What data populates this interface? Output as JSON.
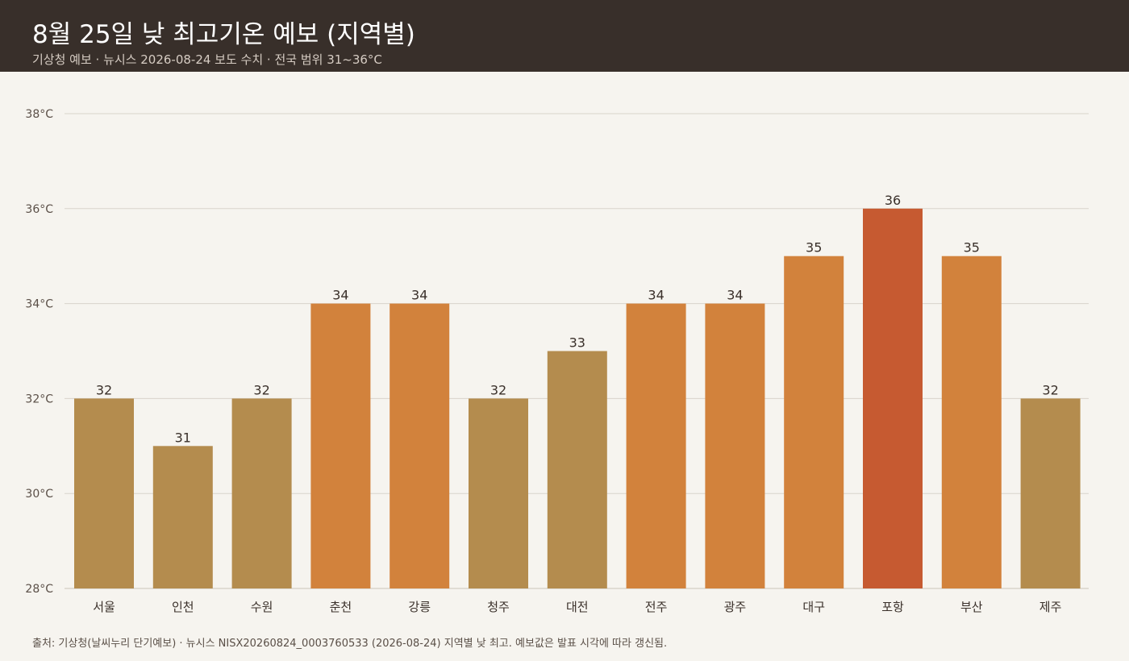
{
  "header": {
    "title": "8월 25일 낮 최고기온 예보 (지역별)",
    "subtitle": "기상청 예보 · 뉴시스 2026-08-24 보도 수치  ·  전국 범위 31~36°C"
  },
  "footer": {
    "source": "출처: 기상청(날씨누리 단기예보) · 뉴시스 NISX20260824_0003760533 (2026-08-24) 지역별 낮 최고. 예보값은 발표 시각에 따라 갱신됨."
  },
  "colors": {
    "low": "#b48c4e",
    "mid": "#d2823c",
    "high": "#c65a31",
    "grid": "#d8d3cb",
    "background": "#f6f4ef",
    "header_bg": "#382f2a"
  },
  "chart_data": {
    "type": "bar",
    "categories": [
      "서울",
      "인천",
      "수원",
      "춘천",
      "강릉",
      "청주",
      "대전",
      "전주",
      "광주",
      "대구",
      "포항",
      "부산",
      "제주"
    ],
    "values": [
      32,
      31,
      32,
      34,
      34,
      32,
      33,
      34,
      34,
      35,
      36,
      35,
      32
    ],
    "ylim": [
      28,
      38
    ],
    "yticks": [
      28,
      30,
      32,
      34,
      36,
      38
    ],
    "ytick_labels": [
      "28°C",
      "30°C",
      "32°C",
      "34°C",
      "36°C",
      "38°C"
    ],
    "grid": true,
    "data_labels": true
  }
}
